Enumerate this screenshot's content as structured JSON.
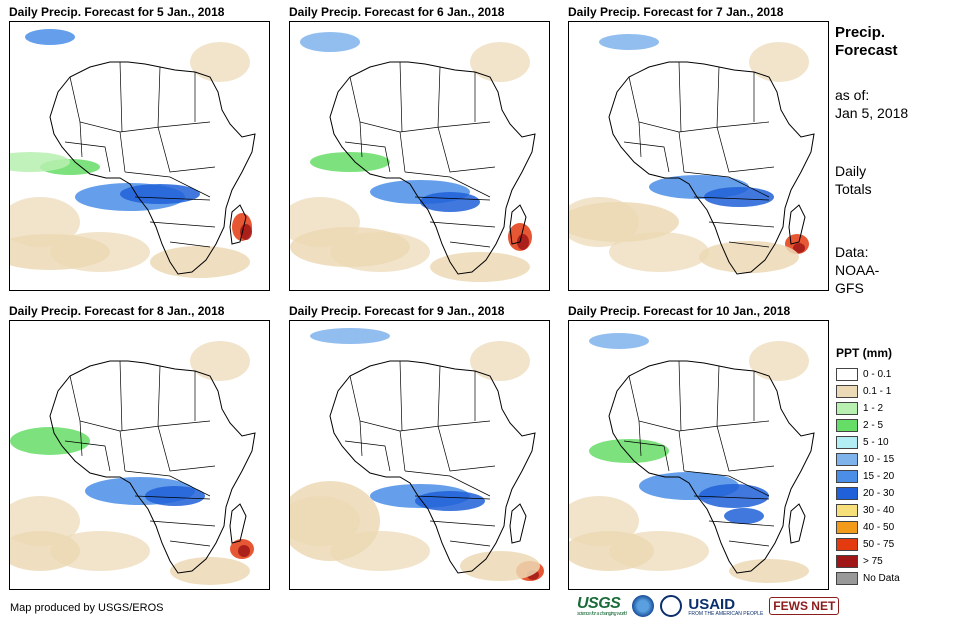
{
  "panels": [
    {
      "title": "Daily Precip. Forecast for 5 Jan., 2018"
    },
    {
      "title": "Daily Precip. Forecast for 6 Jan., 2018"
    },
    {
      "title": "Daily Precip. Forecast for 7 Jan., 2018"
    },
    {
      "title": "Daily Precip. Forecast for 8 Jan., 2018"
    },
    {
      "title": "Daily Precip. Forecast for 9 Jan., 2018"
    },
    {
      "title": "Daily Precip. Forecast for 10 Jan., 2018"
    }
  ],
  "sidebar": {
    "title_line1": "Precip.",
    "title_line2": "Forecast",
    "asof_label": "as of:",
    "asof_date": "Jan 5, 2018",
    "totals_line1": "Daily",
    "totals_line2": "Totals",
    "data_label": "Data:",
    "data_source1": "NOAA-",
    "data_source2": "GFS"
  },
  "legend": {
    "title": "PPT (mm)",
    "items": [
      {
        "label": "0 - 0.1",
        "color": "#ffffff"
      },
      {
        "label": "0.1 - 1",
        "color": "#ecd9b5"
      },
      {
        "label": "1 - 2",
        "color": "#b7f0b0"
      },
      {
        "label": "2 - 5",
        "color": "#66dd66"
      },
      {
        "label": "5 - 10",
        "color": "#b3eef5"
      },
      {
        "label": "10 - 15",
        "color": "#7fb3ec"
      },
      {
        "label": "15 - 20",
        "color": "#4a8ee8"
      },
      {
        "label": "20 - 30",
        "color": "#2060d8"
      },
      {
        "label": "30 - 40",
        "color": "#f7e07a"
      },
      {
        "label": "40 - 50",
        "color": "#f29a1a"
      },
      {
        "label": "50 - 75",
        "color": "#e33a10"
      },
      {
        "label": "> 75",
        "color": "#a01616"
      },
      {
        "label": "No Data",
        "color": "#999999"
      }
    ]
  },
  "footer": {
    "credit": "Map produced by USGS/EROS",
    "logo_usgs": "USGS",
    "logo_usgs_tag": "science for a changing world",
    "logo_usaid": "USAID",
    "logo_usaid_tag": "FROM THE AMERICAN PEOPLE",
    "logo_fews": "FEWS NET"
  }
}
